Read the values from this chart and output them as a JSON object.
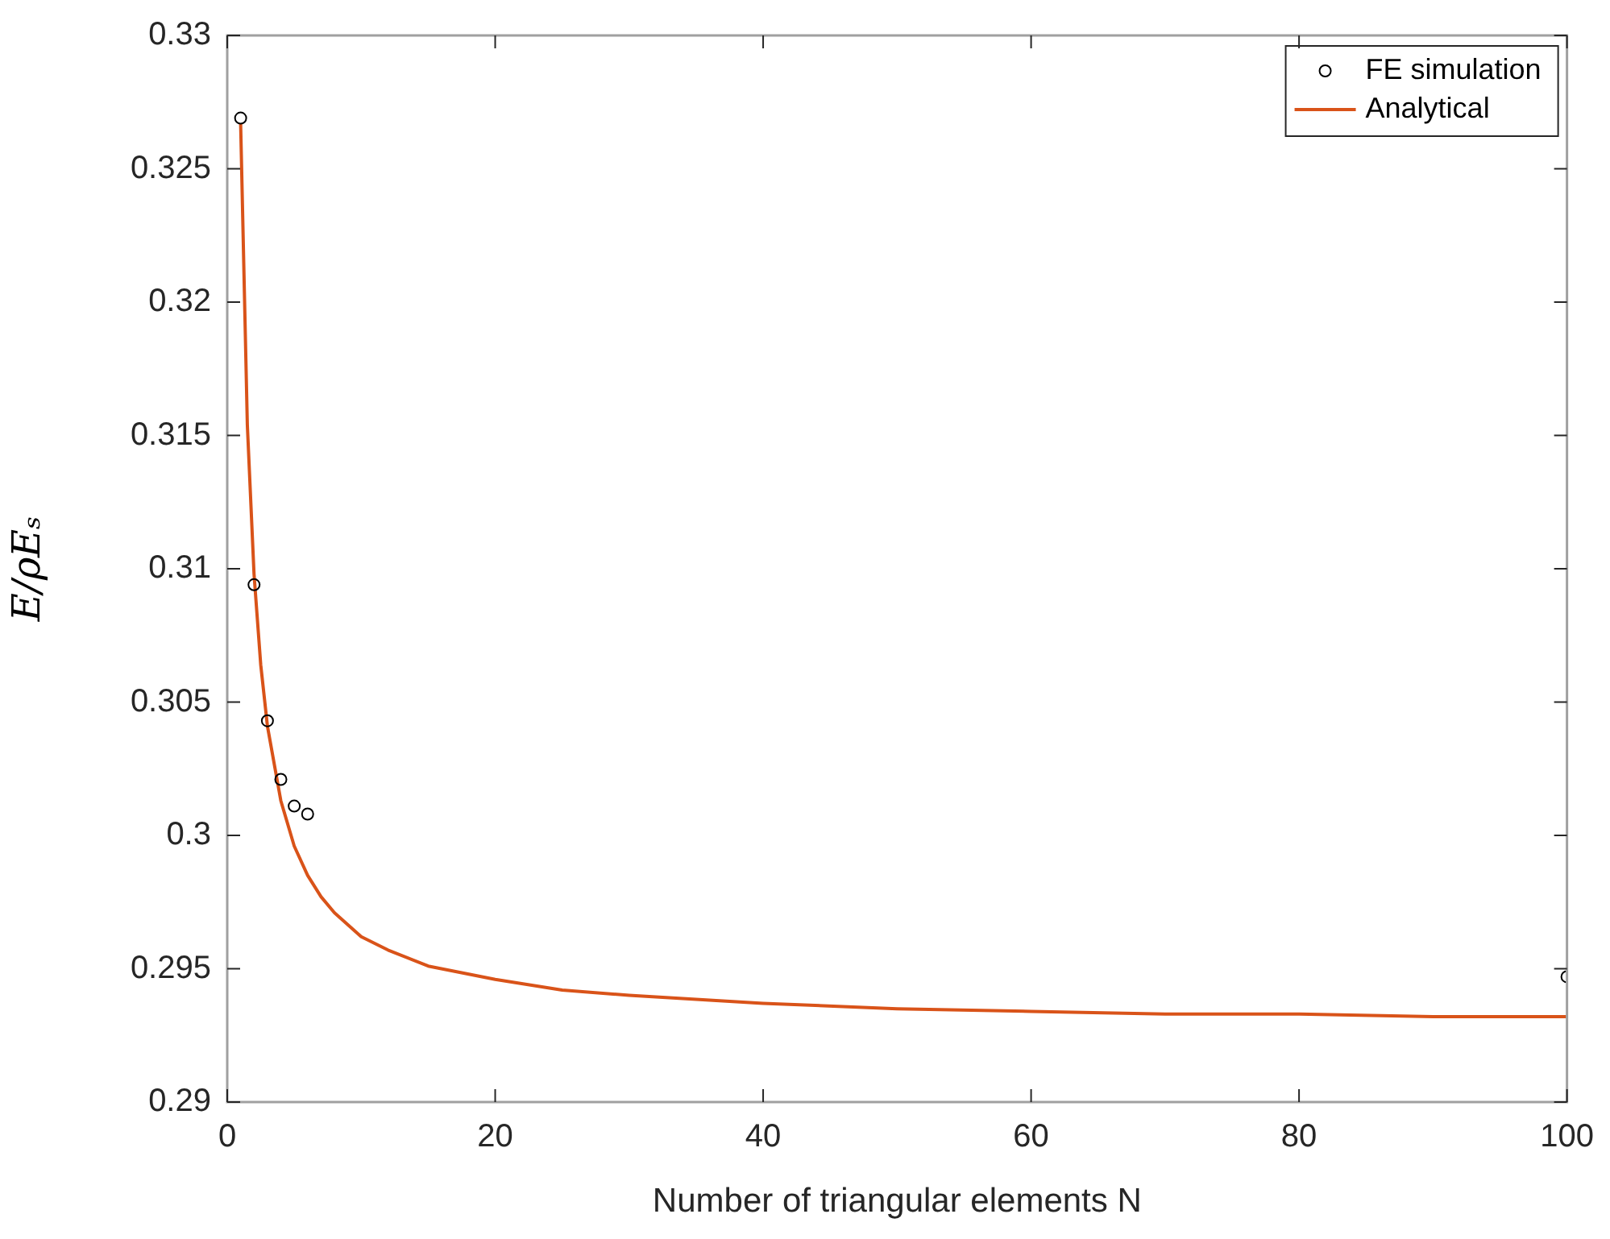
{
  "chart_data": {
    "type": "scatter",
    "xlabel": "Number of triangular elements N",
    "ylabel": "E/ρEₛ",
    "xlim": [
      0,
      100
    ],
    "xticks": [
      0,
      20,
      40,
      60,
      80,
      100
    ],
    "ylim": [
      0.29,
      0.33
    ],
    "yticks": [
      0.29,
      0.295,
      0.3,
      0.305,
      0.31,
      0.315,
      0.32,
      0.325,
      0.33
    ],
    "grid": false,
    "legend": "top right",
    "series": [
      {
        "name": "FE simulation",
        "type": "scatter",
        "marker": "circle",
        "color": "#000000",
        "x": [
          1,
          2,
          3,
          4,
          5,
          6,
          100
        ],
        "values": [
          0.3269,
          0.3094,
          0.3043,
          0.3021,
          0.3011,
          0.3008,
          0.2947
        ]
      },
      {
        "name": "Analytical",
        "type": "line",
        "marker": "none",
        "line_style": "solid",
        "color": "#d95319",
        "x": [
          1,
          1.5,
          2,
          2.5,
          3,
          4,
          5,
          6,
          7,
          8,
          10,
          12,
          15,
          20,
          25,
          30,
          40,
          50,
          60,
          70,
          80,
          90,
          100
        ],
        "values": [
          0.3267,
          0.3154,
          0.3098,
          0.3064,
          0.3041,
          0.3013,
          0.2996,
          0.2985,
          0.2977,
          0.2971,
          0.2962,
          0.2957,
          0.2951,
          0.2946,
          0.2942,
          0.294,
          0.2937,
          0.2935,
          0.2934,
          0.2933,
          0.2933,
          0.2932,
          0.2932
        ]
      }
    ]
  }
}
